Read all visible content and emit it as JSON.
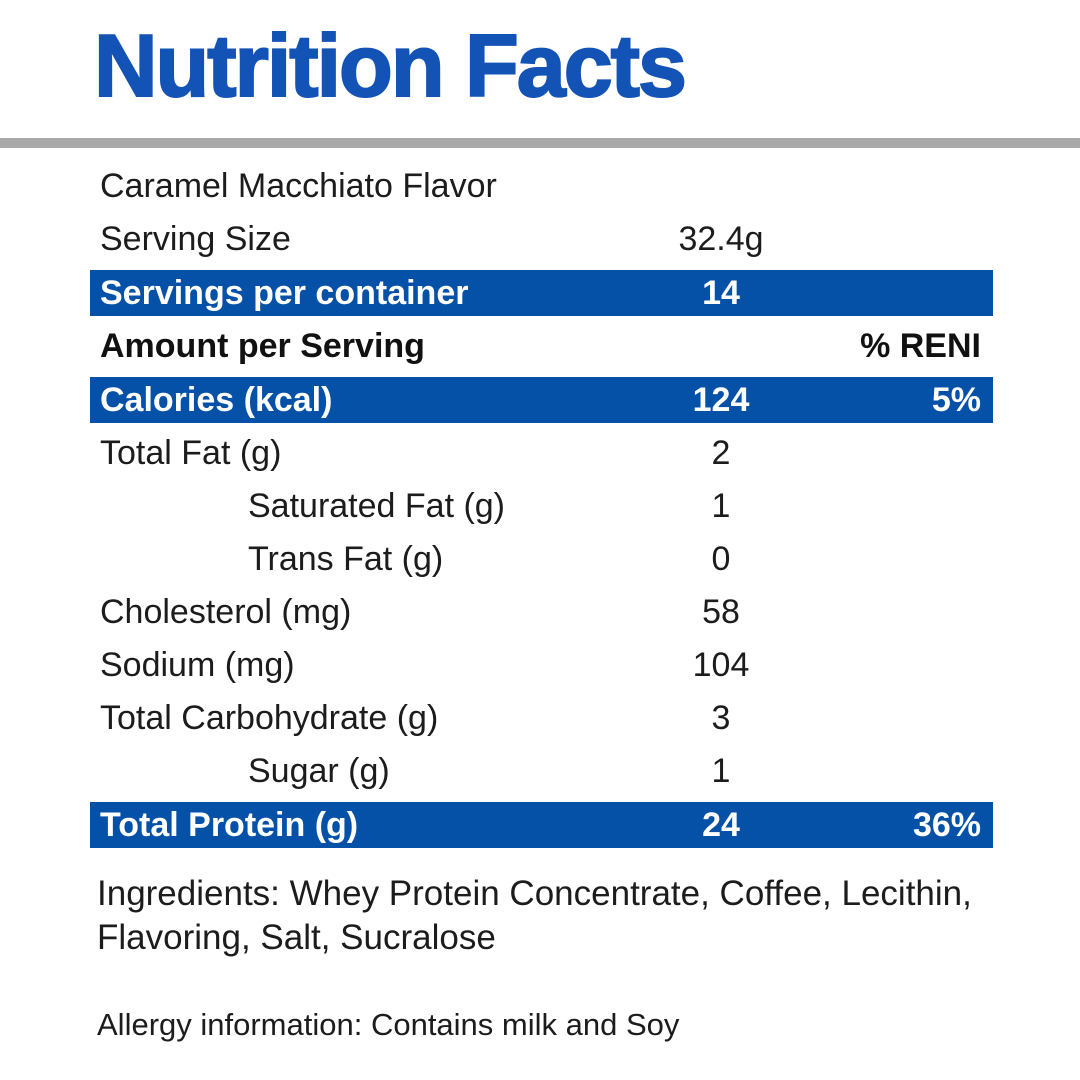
{
  "title": "Nutrition Facts",
  "colors": {
    "title_blue": "#1353b5",
    "bar_blue": "#0551a8",
    "divider_gray": "#a9a9a9",
    "text_color": "#1c1c1c"
  },
  "table": {
    "rows": [
      {
        "label": "Caramel Macchiato Flavor",
        "value": "",
        "percent": "",
        "type": "plain"
      },
      {
        "label": "Serving Size",
        "value": "32.4g",
        "percent": "",
        "type": "plain"
      },
      {
        "label": "Servings per container",
        "value": "14",
        "percent": "",
        "type": "bar"
      },
      {
        "label": "Amount per Serving",
        "value": "",
        "percent": "% RENI",
        "type": "header"
      },
      {
        "label": "Calories (kcal)",
        "value": "124",
        "percent": "5%",
        "type": "bar"
      },
      {
        "label": "Total Fat (g)",
        "value": "2",
        "percent": "",
        "type": "plain"
      },
      {
        "label": "Saturated Fat (g)",
        "value": "1",
        "percent": "",
        "type": "plain",
        "indent": true
      },
      {
        "label": "Trans Fat (g)",
        "value": "0",
        "percent": "",
        "type": "plain",
        "indent": true
      },
      {
        "label": "Cholesterol (mg)",
        "value": "58",
        "percent": "",
        "type": "plain"
      },
      {
        "label": "Sodium (mg)",
        "value": "104",
        "percent": "",
        "type": "plain"
      },
      {
        "label": "Total Carbohydrate (g)",
        "value": "3",
        "percent": "",
        "type": "plain"
      },
      {
        "label": "Sugar (g)",
        "value": "1",
        "percent": "",
        "type": "plain",
        "indent": true
      },
      {
        "label": "Total Protein (g)",
        "value": "24",
        "percent": "36%",
        "type": "bar"
      }
    ]
  },
  "footer": {
    "ingredients": "Ingredients: Whey Protein Concentrate, Coffee, Lecithin, Flavoring, Salt, Sucralose",
    "allergy": "Allergy information: Contains milk and Soy"
  }
}
